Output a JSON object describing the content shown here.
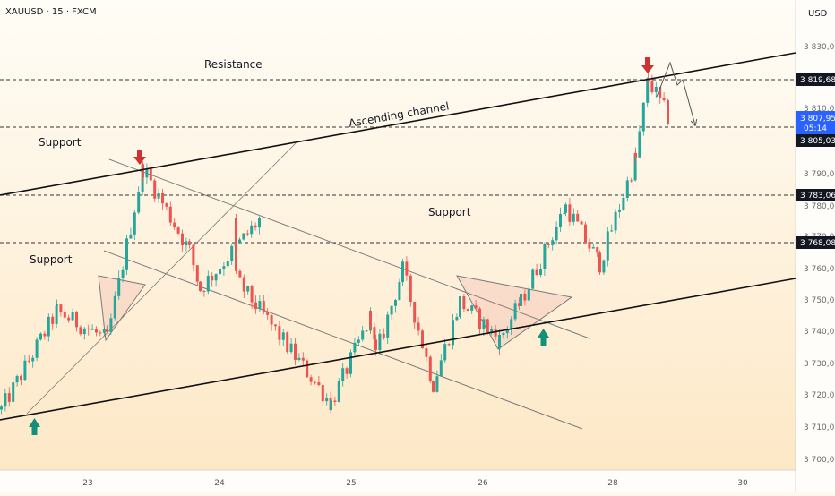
{
  "header": {
    "symbol_line": "XAUUSD · 15 · FXCM",
    "currency": "USD"
  },
  "colors": {
    "up": "#26a69a",
    "down": "#ef5350",
    "arrow_down": "#d0302f",
    "arrow_up": "#12907c",
    "price_badge": "#2962ff",
    "label_badge": "#131722"
  },
  "chart_data": {
    "type": "candlestick",
    "symbol": "XAUUSD",
    "timeframe": "15",
    "broker": "FXCM",
    "x_ticks": [
      "23",
      "24",
      "25",
      "26",
      "28",
      "30"
    ],
    "y_ticks": [
      "3 830,00",
      "3 810,00",
      "3 790,00",
      "3 780,00",
      "3 770,00",
      "3 760,00",
      "3 750,00",
      "3 740,00",
      "3 730,00",
      "3 720,00",
      "3 710,00",
      "3 700,00"
    ],
    "y_tick_values": [
      3830,
      3810,
      3790,
      3780,
      3770,
      3760,
      3750,
      3740,
      3730,
      3720,
      3710,
      3700
    ],
    "ylim": [
      3695,
      3840
    ],
    "grid": false,
    "horizontal_levels": [
      {
        "value": 3819.68,
        "label": "3 819,68"
      },
      {
        "value": 3805.03,
        "label": "3 805,03"
      },
      {
        "value": 3783.06,
        "label": "3 783,06"
      },
      {
        "value": 3768.08,
        "label": "3 768,08"
      }
    ],
    "last_price": {
      "value": 3807.95,
      "label": "3 807,95",
      "countdown": "05:14"
    },
    "annotations": [
      {
        "text": "Resistance"
      },
      {
        "text": "Ascending channel"
      },
      {
        "text": "Support"
      },
      {
        "text": "Support"
      },
      {
        "text": "Support"
      }
    ],
    "key_points": [
      {
        "date": "22",
        "price": 3716
      },
      {
        "date": "23",
        "price": 3747
      },
      {
        "date": "23",
        "price": 3738
      },
      {
        "date": "23",
        "price": 3792
      },
      {
        "date": "24",
        "price": 3766
      },
      {
        "date": "24",
        "price": 3754
      },
      {
        "date": "24",
        "price": 3777
      },
      {
        "date": "24",
        "price": 3757
      },
      {
        "date": "25",
        "price": 3718
      },
      {
        "date": "25",
        "price": 3745
      },
      {
        "date": "25",
        "price": 3733
      },
      {
        "date": "26",
        "price": 3760
      },
      {
        "date": "26",
        "price": 3724
      },
      {
        "date": "26",
        "price": 3750
      },
      {
        "date": "26",
        "price": 3738
      },
      {
        "date": "27",
        "price": 3750
      },
      {
        "date": "27",
        "price": 3780
      },
      {
        "date": "28",
        "price": 3762
      },
      {
        "date": "28",
        "price": 3795
      },
      {
        "date": "28",
        "price": 3820
      },
      {
        "date": "28",
        "price": 3808
      }
    ]
  }
}
